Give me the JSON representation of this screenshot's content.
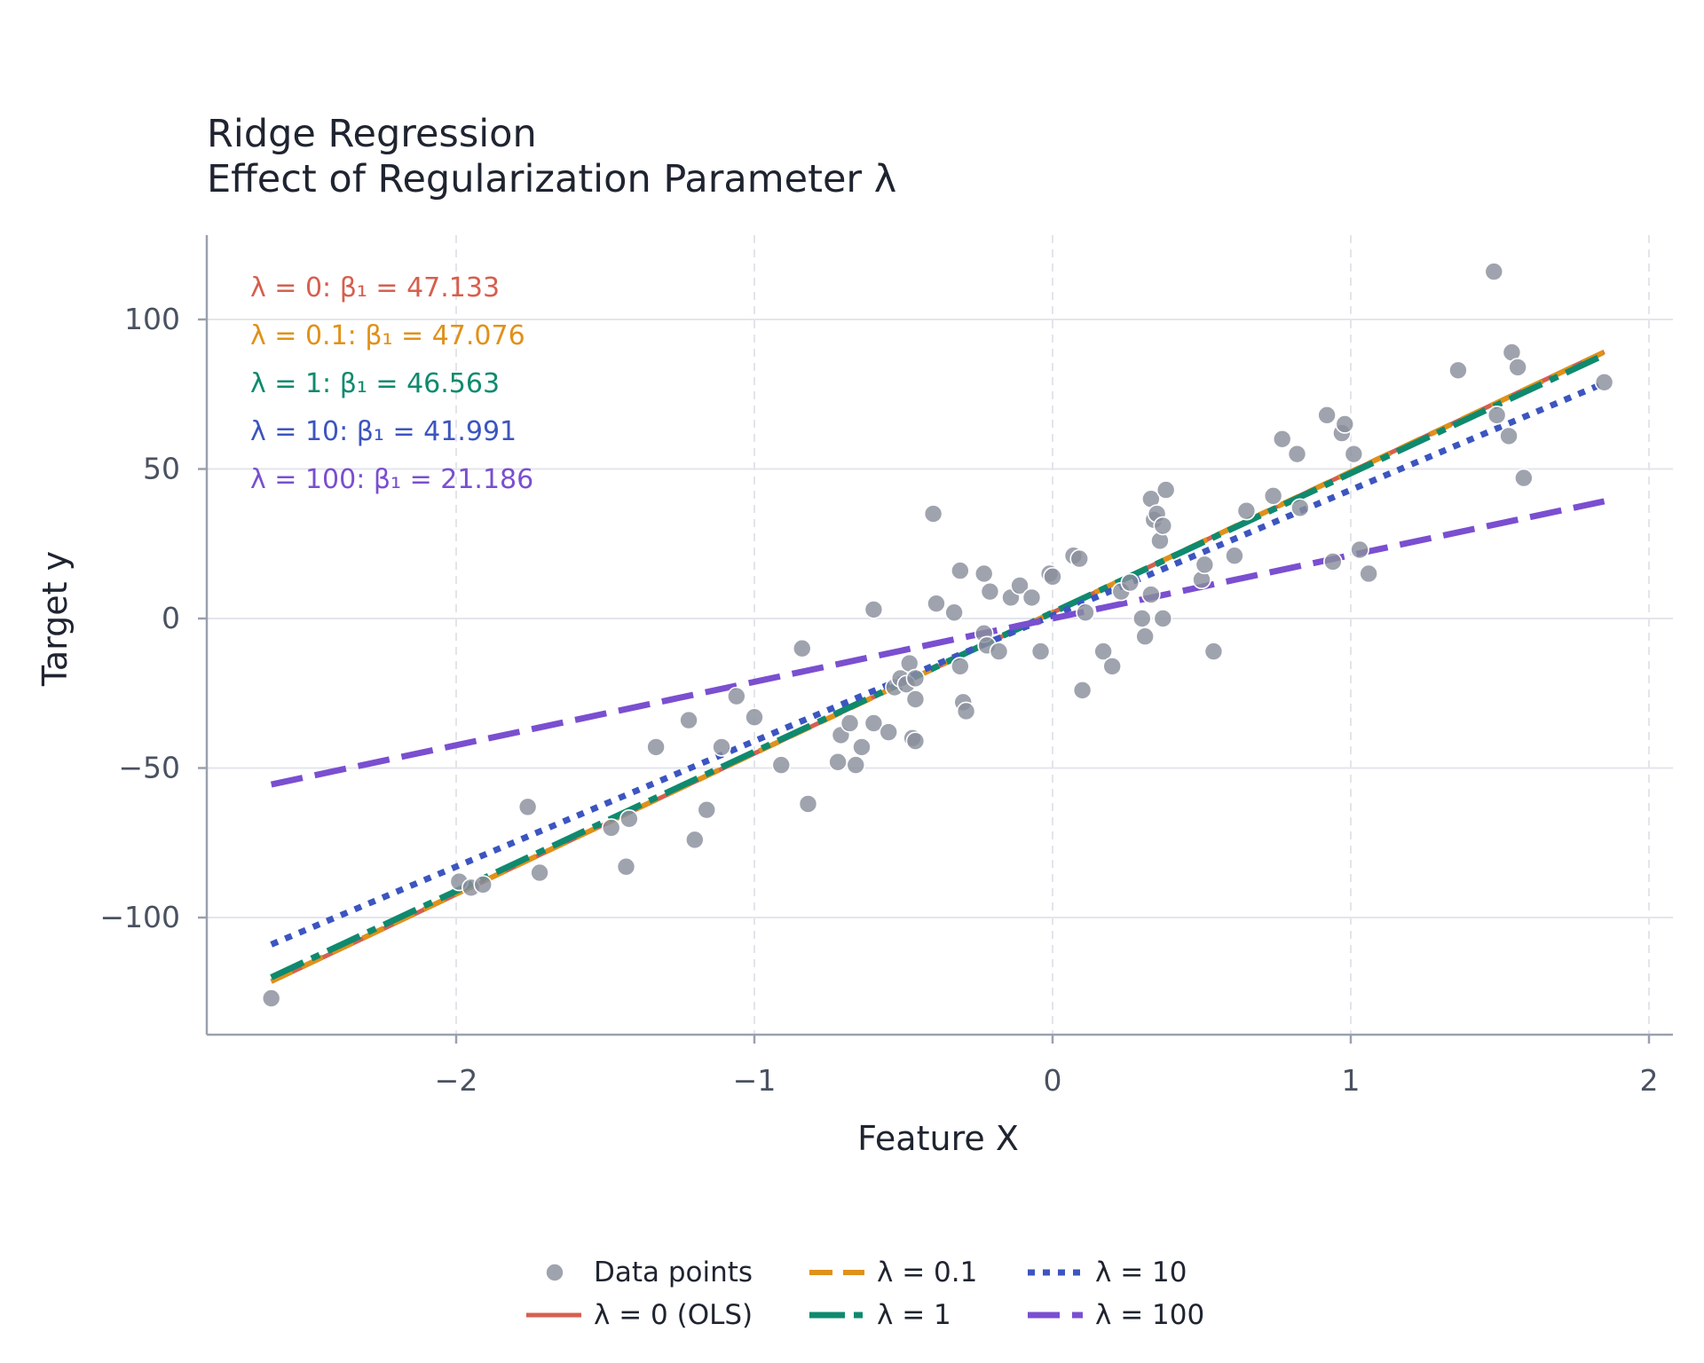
{
  "chart_data": {
    "type": "scatter",
    "title": "Ridge Regression",
    "subtitle": "Effect of Regularization Parameter λ",
    "xlabel": "Feature X",
    "ylabel": "Target y",
    "xlim": [
      -2.85,
      2.08
    ],
    "ylim": [
      -139,
      128
    ],
    "x_ticks": [
      -2,
      -1,
      0,
      1,
      2
    ],
    "x_tick_labels": [
      "−2",
      "−1",
      "0",
      "1",
      "2"
    ],
    "y_ticks": [
      -100,
      -50,
      0,
      50,
      100
    ],
    "y_tick_labels": [
      "−100",
      "−50",
      "0",
      "50",
      "100"
    ],
    "grid": true,
    "legend_position": "bottom",
    "points": {
      "name": "Data points",
      "color": "#8a8f9c",
      "x": [
        -2.62,
        -1.99,
        -1.95,
        -1.91,
        -1.76,
        -1.72,
        -1.48,
        -1.43,
        -1.42,
        -1.33,
        -1.22,
        -1.2,
        -1.16,
        -1.11,
        -1.06,
        -1.0,
        -0.91,
        -0.84,
        -0.82,
        -0.72,
        -0.71,
        -0.68,
        -0.66,
        -0.64,
        -0.6,
        -0.6,
        -0.55,
        -0.53,
        -0.51,
        -0.49,
        -0.48,
        -0.47,
        -0.46,
        -0.46,
        -0.46,
        -0.4,
        -0.39,
        -0.33,
        -0.31,
        -0.31,
        -0.3,
        -0.29,
        -0.23,
        -0.23,
        -0.22,
        -0.21,
        -0.18,
        -0.14,
        -0.11,
        -0.07,
        -0.04,
        -0.01,
        0.0,
        0.07,
        0.09,
        0.1,
        0.11,
        0.17,
        0.2,
        0.23,
        0.26,
        0.3,
        0.31,
        0.33,
        0.33,
        0.34,
        0.35,
        0.36,
        0.37,
        0.37,
        0.38,
        0.5,
        0.51,
        0.54,
        0.61,
        0.65,
        0.74,
        0.77,
        0.82,
        0.83,
        0.92,
        0.94,
        0.97,
        0.98,
        1.01,
        1.03,
        1.06,
        1.36,
        1.48,
        1.49,
        1.53,
        1.54,
        1.56,
        1.58,
        1.85
      ],
      "y": [
        -127,
        -88,
        -90,
        -89,
        -63,
        -85,
        -70,
        -83,
        -67,
        -43,
        -34,
        -74,
        -64,
        -43,
        -26,
        -33,
        -49,
        -10,
        -62,
        -48,
        -39,
        -35,
        -49,
        -43,
        3,
        -35,
        -38,
        -23,
        -20,
        -22,
        -15,
        -40,
        -41,
        -27,
        -20,
        35,
        5,
        2,
        16,
        -16,
        -28,
        -31,
        15,
        -5,
        -9,
        9,
        -11,
        7,
        11,
        7,
        -11,
        15,
        14,
        21,
        20,
        -24,
        2,
        -11,
        -16,
        9,
        12,
        0,
        -6,
        8,
        40,
        33,
        35,
        26,
        31,
        0,
        43,
        13,
        18,
        -11,
        21,
        36,
        41,
        60,
        55,
        37,
        68,
        19,
        62,
        65,
        55,
        23,
        15,
        83,
        116,
        68,
        61,
        89,
        84,
        47,
        79
      ]
    },
    "series": [
      {
        "name": "λ = 0 (OLS)",
        "lambda": "0",
        "coefficient": "47.133",
        "coef_label": "λ = 0: β₁ = 47.133",
        "color": "#d65f4e",
        "slope": 47.133,
        "intercept": 2.0,
        "x": [
          -2.62,
          1.85
        ],
        "line_style": "solid"
      },
      {
        "name": "λ = 0.1",
        "lambda": "0.1",
        "coefficient": "47.076",
        "coef_label": "λ = 0.1: β₁ = 47.076",
        "color": "#e09119",
        "slope": 47.076,
        "intercept": 2.0,
        "x": [
          -2.62,
          1.85
        ],
        "line_style": "dashed"
      },
      {
        "name": "λ = 1",
        "lambda": "1",
        "coefficient": "46.563",
        "coef_label": "λ = 1: β₁ = 46.563",
        "color": "#0f8a6e",
        "slope": 46.563,
        "intercept": 2.0,
        "x": [
          -2.62,
          1.85
        ],
        "line_style": "dashdot"
      },
      {
        "name": "λ = 10",
        "lambda": "10",
        "coefficient": "41.991",
        "coef_label": "λ = 10: β₁ = 41.991",
        "color": "#3c55c0",
        "slope": 41.991,
        "intercept": 1.0,
        "x": [
          -2.62,
          1.85
        ],
        "line_style": "dotted"
      },
      {
        "name": "λ = 100",
        "lambda": "100",
        "coefficient": "21.186",
        "coef_label": "λ = 100: β₁ = 21.186",
        "color": "#7a4fd0",
        "slope": 21.186,
        "intercept": 0.0,
        "x": [
          -2.62,
          1.85
        ],
        "line_style": "longdash"
      }
    ]
  }
}
